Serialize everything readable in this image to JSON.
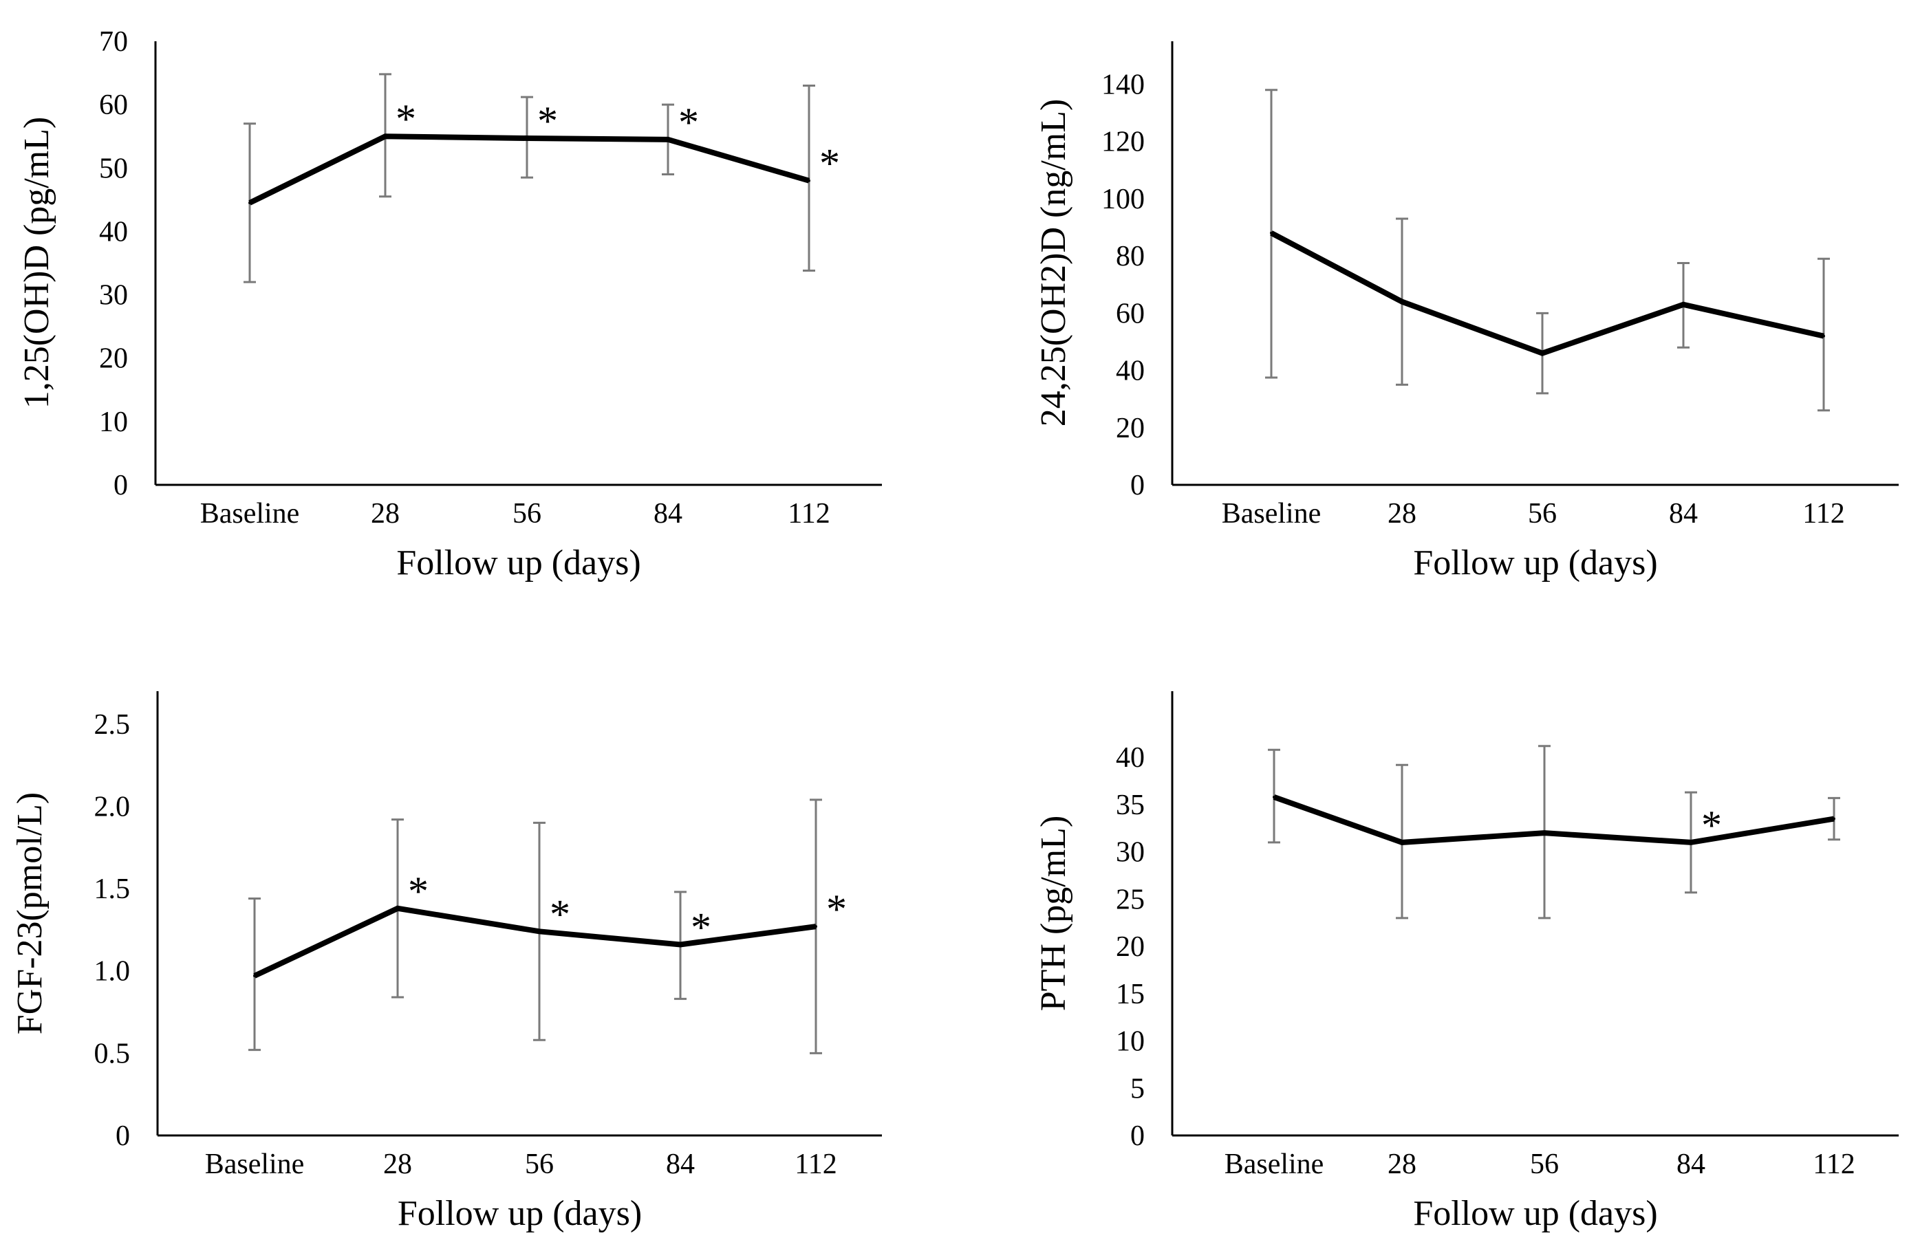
{
  "chart_data": [
    {
      "type": "line",
      "categories": [
        "Baseline",
        "28",
        "56",
        "84",
        "112"
      ],
      "series": [
        {
          "name": "1,25(OH)D",
          "values": [
            44.5,
            55,
            54.7,
            54.5,
            48
          ],
          "error_low": [
            32,
            45.5,
            48.5,
            49,
            33.8
          ],
          "error_high": [
            57,
            64.8,
            61.2,
            60,
            63
          ]
        }
      ],
      "significant": [
        false,
        true,
        true,
        true,
        true
      ],
      "significance_marker": "*",
      "xlabel": "Follow up (days)",
      "ylabel": "1,25(OH)D (pg/mL)",
      "ylim": [
        0,
        70
      ],
      "yticks": [
        0,
        10,
        20,
        30,
        40,
        50,
        60,
        70
      ],
      "ytick_labels": [
        "0",
        "10",
        "20",
        "30",
        "40",
        "50",
        "60",
        "70"
      ]
    },
    {
      "type": "line",
      "categories": [
        "Baseline",
        "28",
        "56",
        "84",
        "112"
      ],
      "series": [
        {
          "name": "24,25(OH2)D",
          "values": [
            88,
            64,
            46,
            63,
            52
          ],
          "error_low": [
            37.5,
            35,
            32,
            48,
            26
          ],
          "error_high": [
            138,
            93,
            60,
            77.5,
            79
          ]
        }
      ],
      "significant": [
        false,
        false,
        false,
        false,
        false
      ],
      "significance_marker": "*",
      "xlabel": "Follow up (days)",
      "ylabel": "24,25(OH2)D (ng/mL)",
      "ylim": [
        0,
        155
      ],
      "yticks": [
        0,
        20,
        40,
        60,
        80,
        100,
        120,
        140
      ],
      "ytick_labels": [
        "0",
        "20",
        "40",
        "60",
        "80",
        "100",
        "120",
        "140"
      ]
    },
    {
      "type": "line",
      "categories": [
        "Baseline",
        "28",
        "56",
        "84",
        "112"
      ],
      "series": [
        {
          "name": "FGF-23",
          "values": [
            0.97,
            1.38,
            1.24,
            1.16,
            1.27
          ],
          "error_low": [
            0.52,
            0.84,
            0.58,
            0.83,
            0.5
          ],
          "error_high": [
            1.44,
            1.92,
            1.9,
            1.48,
            2.04
          ]
        }
      ],
      "significant": [
        false,
        true,
        true,
        true,
        true
      ],
      "significance_marker": "*",
      "xlabel": "Follow up (days)",
      "ylabel": "FGF-23(pmol/L)",
      "ylim": [
        0,
        2.7
      ],
      "yticks": [
        0,
        0.5,
        1.0,
        1.5,
        2.0,
        2.5
      ],
      "ytick_labels": [
        "0",
        "0.5",
        "1.0",
        "1.5",
        "2.0",
        "2.5"
      ]
    },
    {
      "type": "line",
      "categories": [
        "Baseline",
        "28",
        "56",
        "84",
        "112"
      ],
      "series": [
        {
          "name": "PTH",
          "values": [
            35.8,
            31,
            32,
            31,
            33.5
          ],
          "error_low": [
            31,
            23,
            23,
            25.7,
            31.3
          ],
          "error_high": [
            40.8,
            39.2,
            41.2,
            36.3,
            35.7
          ]
        }
      ],
      "significant": [
        false,
        false,
        false,
        true,
        false
      ],
      "significance_marker": "*",
      "xlabel": "Follow up (days)",
      "ylabel": "PTH (pg/mL)",
      "ylim": [
        0,
        47
      ],
      "yticks": [
        0,
        5,
        10,
        15,
        20,
        25,
        30,
        35,
        40
      ],
      "ytick_labels": [
        "0",
        "5",
        "10",
        "15",
        "20",
        "25",
        "30",
        "35",
        "40"
      ]
    }
  ]
}
